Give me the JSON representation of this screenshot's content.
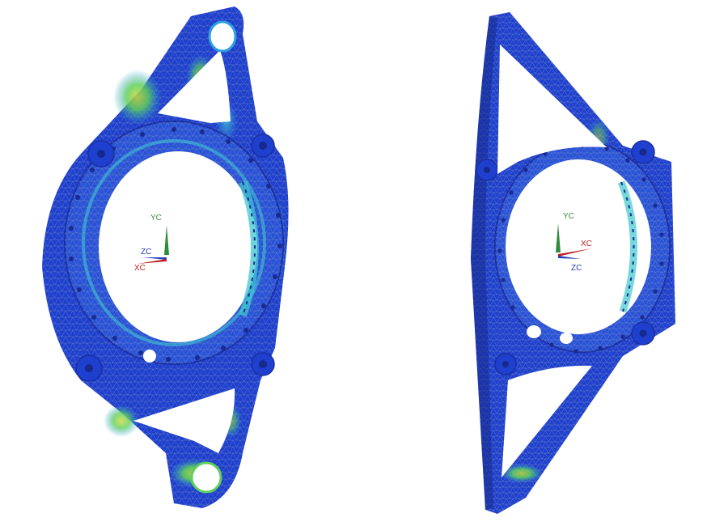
{
  "views": [
    {
      "id": "isometric-view",
      "triad": {
        "y_label": "YC",
        "z_label": "ZC",
        "x_label": "XC"
      }
    },
    {
      "id": "rotated-view",
      "triad": {
        "y_label": "YC",
        "x_label": "XC",
        "z_label": "ZC"
      }
    }
  ],
  "colors": {
    "background": "#ffffff",
    "mesh_low": "#1f3fcf",
    "mesh_mid": "#2fa0e0",
    "mesh_high": "#5fd05a",
    "mesh_peak": "#c8d83a",
    "mesh_line": "#8fa8b8",
    "axis_y": "#2e8b3a",
    "axis_z": "#2040c0",
    "axis_x": "#c02020"
  }
}
